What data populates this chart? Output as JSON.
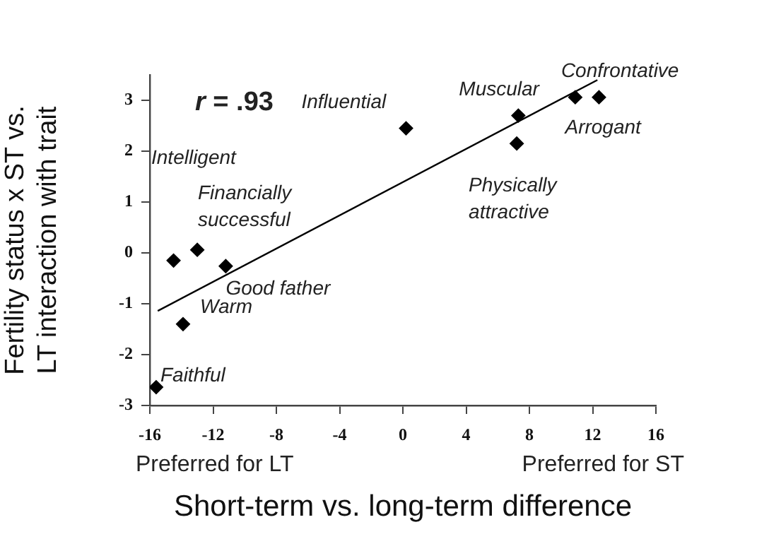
{
  "chart_data": {
    "type": "scatter",
    "xlabel": "Short-term vs. long-term difference",
    "ylabel": "Fertility status x ST vs. LT interaction with trait",
    "xlim": [
      -16,
      16
    ],
    "xticks": [
      -16,
      -12,
      -8,
      -4,
      0,
      4,
      8,
      12,
      16
    ],
    "ylim": [
      -3,
      3.5
    ],
    "yticks": [
      -3,
      -2,
      -1,
      0,
      1,
      2,
      3
    ],
    "grid": false,
    "legend": false,
    "marker": "diamond",
    "series": [
      {
        "color": "#000000",
        "x": [
          -15.6,
          -14.5,
          -13.0,
          -11.2,
          -13.9,
          0.2,
          7.3,
          7.2,
          10.9,
          12.4
        ],
        "values": [
          -2.64,
          -0.15,
          0.06,
          -0.26,
          -1.4,
          2.45,
          2.7,
          2.15,
          3.06,
          3.06
        ]
      },
      {
        "type": "line",
        "color": "#000000",
        "marker": "none",
        "x": [
          -15.5,
          12.3
        ],
        "values": [
          -1.14,
          3.4
        ]
      }
    ],
    "annotations": [
      {
        "text": "Faithful",
        "x": -15.6,
        "y": -2.64
      },
      {
        "text": "Good father",
        "x": -11.2,
        "y": -0.26
      },
      {
        "text": "Warm",
        "x": -13.9,
        "y": -1.4
      },
      {
        "text": "Influential",
        "x": 0.2,
        "y": 2.45
      },
      {
        "text": "Muscular",
        "x": 7.3,
        "y": 2.7
      },
      {
        "text": "Physically attractive",
        "x": 7.2,
        "y": 2.15
      },
      {
        "text": "Confrontative",
        "x": 10.9,
        "y": 3.06
      },
      {
        "text": "Arrogant",
        "x": 12.4,
        "y": 3.06
      },
      "r = .93",
      "Intelligent",
      "Financially successful",
      "Preferred for LT",
      "Preferred for ST"
    ]
  }
}
